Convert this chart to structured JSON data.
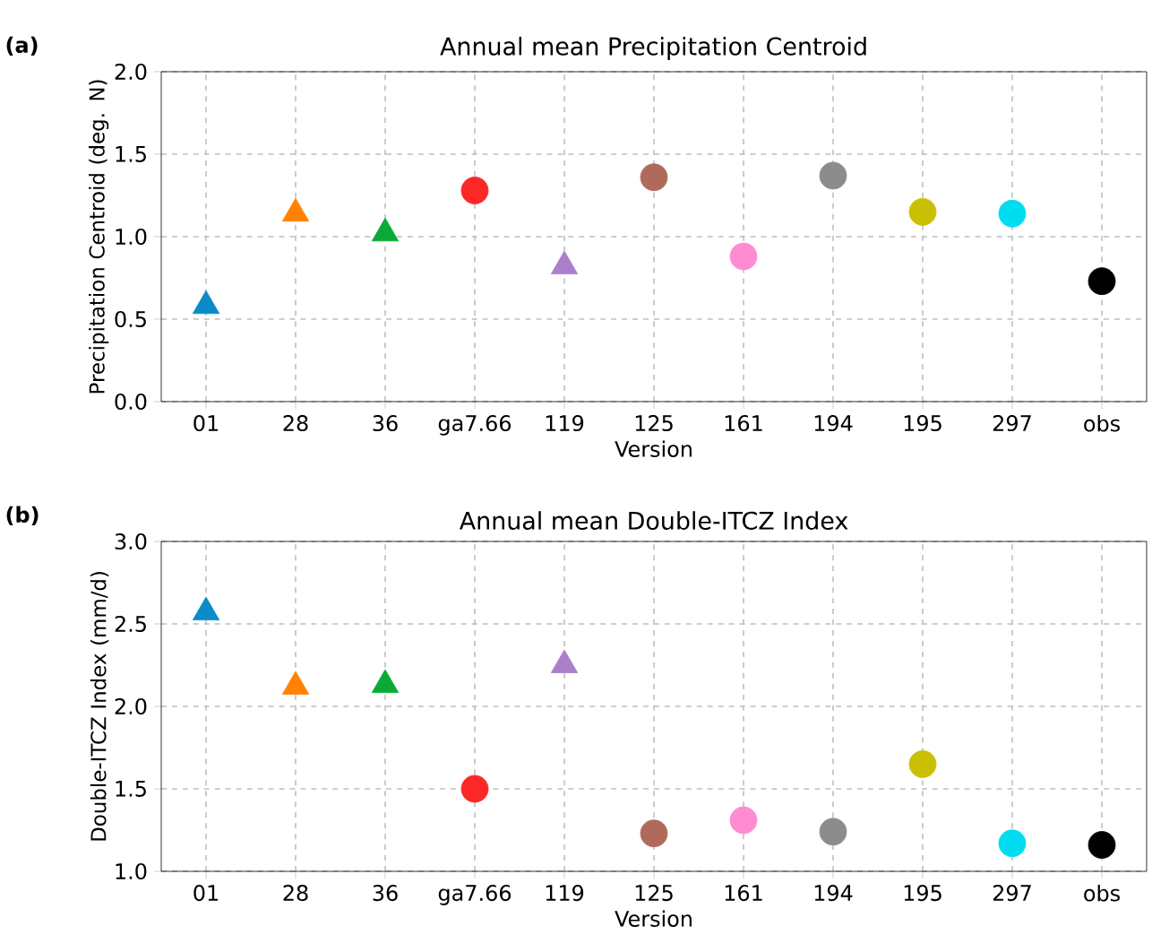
{
  "chart_data": [
    {
      "type": "scatter",
      "title": "Annual mean Precipitation Centroid",
      "xlabel": "Version",
      "ylabel": "Precipitation Centroid (deg. N)",
      "annotations": [
        "(a)"
      ],
      "categories": [
        "01",
        "28",
        "36",
        "ga7.66",
        "119",
        "125",
        "161",
        "194",
        "195",
        "297",
        "obs"
      ],
      "ylim": [
        0,
        2
      ],
      "yticks": [
        {
          "value": 0,
          "label": "0.0"
        },
        0.5,
        {
          "value": 1,
          "label": "1.0"
        },
        1.5,
        {
          "value": 2,
          "label": "2.0"
        }
      ],
      "grid": true,
      "series": [
        {
          "marker": "triangle",
          "values": [
            0.58,
            1.14,
            1.02,
            null,
            0.82,
            null,
            null,
            null,
            null,
            null,
            null
          ],
          "colors": [
            "#0b8bc7",
            "#ff8206",
            "#0aaa36",
            null,
            "#aa7fcc",
            null,
            null,
            null,
            null,
            null,
            null
          ]
        },
        {
          "marker": "circle",
          "values": [
            null,
            null,
            null,
            1.28,
            null,
            1.36,
            0.88,
            1.37,
            1.15,
            1.14,
            0.73
          ],
          "colors": [
            null,
            null,
            null,
            "#fc2727",
            null,
            "#b06a5c",
            "#ff8cd2",
            "#8c8c8c",
            "#c8c000",
            "#00ddf0",
            "#000000"
          ]
        }
      ]
    },
    {
      "type": "scatter",
      "title": "Annual mean Double-ITCZ Index",
      "xlabel": "Version",
      "ylabel": "Double-ITCZ Index (mm/d)",
      "annotations": [
        "(b)"
      ],
      "categories": [
        "01",
        "28",
        "36",
        "ga7.66",
        "119",
        "125",
        "161",
        "194",
        "195",
        "297",
        "obs"
      ],
      "ylim": [
        1,
        3
      ],
      "yticks": [
        {
          "value": 1,
          "label": "1.0"
        },
        1.5,
        {
          "value": 2,
          "label": "2.0"
        },
        2.5,
        {
          "value": 3,
          "label": "3.0"
        }
      ],
      "grid": true,
      "series": [
        {
          "marker": "triangle",
          "values": [
            2.57,
            2.12,
            2.13,
            null,
            2.25,
            null,
            null,
            null,
            null,
            null,
            null
          ],
          "colors": [
            "#0b8bc7",
            "#ff8206",
            "#0aaa36",
            null,
            "#aa7fcc",
            null,
            null,
            null,
            null,
            null,
            null
          ]
        },
        {
          "marker": "circle",
          "values": [
            null,
            null,
            null,
            1.5,
            null,
            1.23,
            1.31,
            1.24,
            1.65,
            1.17,
            1.16
          ],
          "colors": [
            null,
            null,
            null,
            "#fc2727",
            null,
            "#b06a5c",
            "#ff8cd2",
            "#8c8c8c",
            "#c8c000",
            "#00ddf0",
            "#000000"
          ]
        }
      ]
    }
  ]
}
